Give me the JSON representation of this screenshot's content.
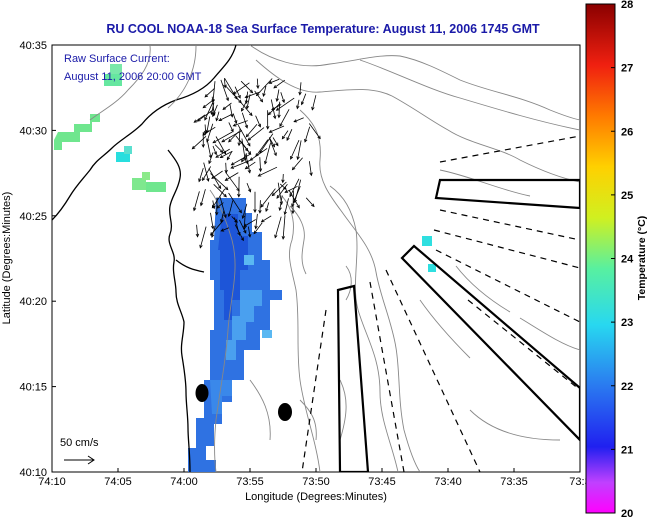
{
  "title": "RU COOL  NOAA-18  Sea Surface Temperature:  August 11, 2006 1745 GMT",
  "annotation": {
    "line1": "Raw Surface Current:",
    "line2": "August 11, 2006 20:00 GMT"
  },
  "scale_label": "50 cm/s",
  "xlabel": "Longitude (Degrees:Minutes)",
  "ylabel": "Latitude (Degrees:Minutes)",
  "x_ticks": [
    "74:10",
    "74:05",
    "74:00",
    "73:55",
    "73:50",
    "73:45",
    "73:40",
    "73:35",
    "73:3"
  ],
  "y_ticks": [
    "40:35",
    "40:30",
    "40:25",
    "40:20",
    "40:15",
    "40:10"
  ],
  "colorbar": {
    "label": "Temperature (°C)",
    "ticks": [
      "28",
      "27",
      "26",
      "25",
      "24",
      "23",
      "22",
      "21",
      "20"
    ],
    "min": 20,
    "max": 28
  },
  "colors": {
    "title": "#1a1aa8",
    "sst_cold": "#2a6ee0",
    "sst_mid": "#46a8f0",
    "sst_cyan": "#30e0e8",
    "sst_green": "#66ee88"
  }
}
